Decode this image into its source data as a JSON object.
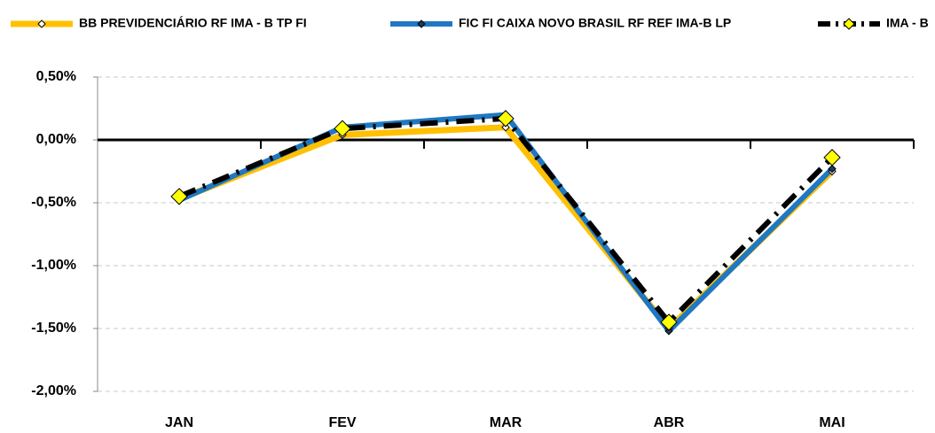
{
  "chart_data": {
    "type": "line",
    "categories": [
      "JAN",
      "FEV",
      "MAR",
      "ABR",
      "MAI"
    ],
    "series": [
      {
        "name": "BB PREVIDENCIÁRIO RF IMA - B TP FI",
        "color": "#FFC000",
        "marker_color": "#FFFFFF",
        "dash": "solid",
        "values": [
          -0.47,
          0.04,
          0.1,
          -1.5,
          -0.25
        ]
      },
      {
        "name": "FIC FI CAIXA NOVO BRASIL RF REF IMA-B LP",
        "color": "#1F78C1",
        "marker_color": "#1F3A5A",
        "dash": "solid",
        "values": [
          -0.48,
          0.1,
          0.2,
          -1.52,
          -0.23
        ]
      },
      {
        "name": "IMA - B",
        "color": "#000000",
        "marker_color": "#FFFF00",
        "dash": "dashdot",
        "values": [
          -0.45,
          0.09,
          0.17,
          -1.45,
          -0.14
        ]
      }
    ],
    "ylim": [
      -2.0,
      0.5
    ],
    "yticks": [
      {
        "value": 0.5,
        "label": "0,50%"
      },
      {
        "value": 0,
        "label": "0,00%"
      },
      {
        "value": -0.5,
        "label": "-0,50%"
      },
      {
        "value": -1.0,
        "label": "-1,00%"
      },
      {
        "value": -1.5,
        "label": "-1,50%"
      },
      {
        "value": -2.0,
        "label": "-2,00%"
      }
    ],
    "grid": true,
    "legend": "top"
  }
}
